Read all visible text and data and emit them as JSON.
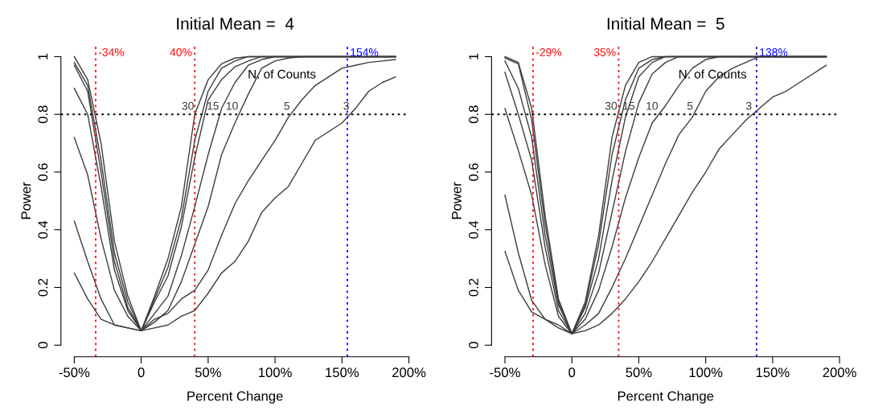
{
  "chart_data": [
    {
      "type": "line",
      "title": "Initial Mean =  4",
      "xlabel": "Percent Change",
      "ylabel": "Power",
      "x": [
        -50,
        -40,
        -30,
        -20,
        -10,
        0,
        10,
        20,
        30,
        40,
        50,
        60,
        70,
        80,
        90,
        100,
        110,
        120,
        130,
        140,
        150,
        160,
        170,
        180,
        190
      ],
      "series": [
        {
          "name": "30",
          "color": "#3c3c3c",
          "values": [
            1.0,
            0.92,
            0.7,
            0.36,
            0.17,
            0.05,
            0.17,
            0.3,
            0.48,
            0.8,
            0.92,
            0.975,
            0.995,
            1,
            1,
            1,
            1,
            1,
            1,
            1,
            1,
            1,
            1,
            1,
            1
          ]
        },
        {
          "color": "#3c3c3c",
          "values": [
            0.98,
            0.9,
            0.64,
            0.32,
            0.15,
            0.05,
            0.16,
            0.27,
            0.44,
            0.71,
            0.88,
            0.96,
            0.985,
            1,
            1,
            1,
            1,
            1,
            1,
            1,
            1,
            1,
            1,
            1,
            1
          ]
        },
        {
          "color": "#3c3c3c",
          "values": [
            0.97,
            0.88,
            0.6,
            0.29,
            0.13,
            0.05,
            0.15,
            0.24,
            0.41,
            0.65,
            0.85,
            0.92,
            0.965,
            0.985,
            1,
            1,
            1,
            1,
            1,
            1,
            1,
            1,
            1,
            1,
            1
          ]
        },
        {
          "name": "15",
          "color": "#3c3c3c",
          "values": [
            0.89,
            0.8,
            0.55,
            0.26,
            0.12,
            0.05,
            0.11,
            0.17,
            0.31,
            0.48,
            0.66,
            0.82,
            0.91,
            0.97,
            0.99,
            1,
            1,
            1,
            1,
            1,
            1,
            1,
            1,
            1,
            1
          ]
        },
        {
          "name": "10",
          "color": "#3c3c3c",
          "values": [
            0.72,
            0.59,
            0.37,
            0.19,
            0.1,
            0.05,
            0.08,
            0.12,
            0.22,
            0.35,
            0.48,
            0.66,
            0.77,
            0.87,
            0.96,
            0.985,
            0.995,
            1,
            1,
            1,
            1,
            1,
            1,
            1,
            1
          ]
        },
        {
          "name": "5",
          "color": "#3c3c3c",
          "values": [
            0.43,
            0.29,
            0.16,
            0.07,
            0.06,
            0.05,
            0.09,
            0.11,
            0.16,
            0.19,
            0.26,
            0.38,
            0.49,
            0.57,
            0.64,
            0.71,
            0.79,
            0.85,
            0.9,
            0.93,
            0.96,
            0.97,
            0.98,
            0.985,
            0.99
          ]
        },
        {
          "name": "3",
          "color": "#3c3c3c",
          "values": [
            0.25,
            0.16,
            0.09,
            0.07,
            0.06,
            0.05,
            0.06,
            0.07,
            0.1,
            0.12,
            0.18,
            0.25,
            0.29,
            0.36,
            0.46,
            0.51,
            0.55,
            0.63,
            0.71,
            0.74,
            0.77,
            0.82,
            0.88,
            0.91,
            0.93
          ]
        }
      ],
      "xlim": [
        -60,
        200
      ],
      "ylim": [
        -0.04,
        1.04
      ],
      "xticks": [
        {
          "value": -50,
          "label": "-50%"
        },
        0,
        {
          "value": 50,
          "label": "50%"
        },
        {
          "value": 100,
          "label": "100%"
        },
        {
          "value": 150,
          "label": "150%"
        },
        {
          "value": 200,
          "label": "200%"
        }
      ],
      "yticks": [
        0,
        0.2,
        0.4,
        0.6,
        0.8,
        1
      ],
      "ref_lines": [
        {
          "axis": "x",
          "value": -34,
          "label": "-34%",
          "color": "#ff0000",
          "line_style": "dotted"
        },
        {
          "axis": "x",
          "value": 40,
          "label": "40%",
          "color": "#ff0000",
          "line_style": "dotted"
        },
        {
          "axis": "x",
          "value": 154,
          "label": "154%",
          "color": "#0000ff",
          "line_style": "dotted"
        },
        {
          "axis": "y",
          "value": 0.8,
          "color": "#000000",
          "line_style": "dotted"
        }
      ],
      "annotations": [
        "N. of Counts"
      ],
      "grid": false,
      "legend": false,
      "marker": "none",
      "line_style": "solid"
    },
    {
      "type": "line",
      "title": "Initial Mean =  5",
      "xlabel": "Percent Change",
      "ylabel": "Power",
      "x": [
        -50,
        -40,
        -30,
        -20,
        -10,
        0,
        10,
        20,
        30,
        40,
        50,
        60,
        70,
        80,
        90,
        100,
        110,
        120,
        130,
        140,
        150,
        160,
        170,
        180,
        190
      ],
      "series": [
        {
          "name": "30",
          "color": "#3c3c3c",
          "values": [
            1.0,
            0.98,
            0.82,
            0.45,
            0.16,
            0.04,
            0.15,
            0.38,
            0.72,
            0.9,
            0.98,
            1,
            1,
            1,
            1,
            1,
            1,
            1,
            1,
            1,
            1,
            1,
            1,
            1,
            1
          ]
        },
        {
          "color": "#3c3c3c",
          "values": [
            0.995,
            0.975,
            0.78,
            0.42,
            0.15,
            0.04,
            0.14,
            0.35,
            0.66,
            0.85,
            0.96,
            0.99,
            1,
            1,
            1,
            1,
            1,
            1,
            1,
            1,
            1,
            1,
            1,
            1,
            1
          ]
        },
        {
          "color": "#3c3c3c",
          "values": [
            0.985,
            0.89,
            0.72,
            0.38,
            0.14,
            0.04,
            0.13,
            0.3,
            0.57,
            0.79,
            0.93,
            0.98,
            1,
            1,
            1,
            1,
            1,
            1,
            1,
            1,
            1,
            1,
            1,
            1,
            1
          ]
        },
        {
          "name": "15",
          "color": "#3c3c3c",
          "values": [
            0.946,
            0.8,
            0.64,
            0.34,
            0.12,
            0.04,
            0.11,
            0.25,
            0.46,
            0.67,
            0.84,
            0.94,
            0.98,
            1,
            1,
            1,
            1,
            1,
            1,
            1,
            1,
            1,
            1,
            1,
            1
          ]
        },
        {
          "name": "10",
          "color": "#3c3c3c",
          "values": [
            0.82,
            0.675,
            0.52,
            0.28,
            0.1,
            0.04,
            0.09,
            0.19,
            0.34,
            0.51,
            0.65,
            0.77,
            0.83,
            0.9,
            0.96,
            0.99,
            1,
            1,
            1,
            1,
            1,
            1,
            1,
            1,
            1
          ]
        },
        {
          "name": "5",
          "color": "#3c3c3c",
          "values": [
            0.52,
            0.32,
            0.155,
            0.09,
            0.06,
            0.04,
            0.07,
            0.11,
            0.2,
            0.3,
            0.41,
            0.52,
            0.63,
            0.73,
            0.79,
            0.88,
            0.93,
            0.96,
            0.98,
            1,
            1,
            1,
            1,
            1,
            1
          ]
        },
        {
          "name": "3",
          "color": "#3c3c3c",
          "values": [
            0.325,
            0.19,
            0.115,
            0.09,
            0.07,
            0.04,
            0.05,
            0.07,
            0.11,
            0.16,
            0.22,
            0.29,
            0.37,
            0.45,
            0.53,
            0.6,
            0.68,
            0.73,
            0.78,
            0.82,
            0.86,
            0.88,
            0.91,
            0.94,
            0.97
          ]
        }
      ],
      "xlim": [
        -60,
        200
      ],
      "ylim": [
        -0.04,
        1.04
      ],
      "xticks": [
        {
          "value": -50,
          "label": "-50%"
        },
        0,
        {
          "value": 50,
          "label": "50%"
        },
        {
          "value": 100,
          "label": "100%"
        },
        {
          "value": 150,
          "label": "150%"
        },
        {
          "value": 200,
          "label": "200%"
        }
      ],
      "yticks": [
        0,
        0.2,
        0.4,
        0.6,
        0.8,
        1
      ],
      "ref_lines": [
        {
          "axis": "x",
          "value": -29,
          "label": "-29%",
          "color": "#ff0000",
          "line_style": "dotted"
        },
        {
          "axis": "x",
          "value": 35,
          "label": "35%",
          "color": "#ff0000",
          "line_style": "dotted"
        },
        {
          "axis": "x",
          "value": 138,
          "label": "138%",
          "color": "#0000ff",
          "line_style": "dotted"
        },
        {
          "axis": "y",
          "value": 0.8,
          "color": "#000000",
          "line_style": "dotted"
        }
      ],
      "annotations": [
        "N. of Counts"
      ],
      "grid": false,
      "legend": false,
      "marker": "none",
      "line_style": "solid"
    }
  ]
}
